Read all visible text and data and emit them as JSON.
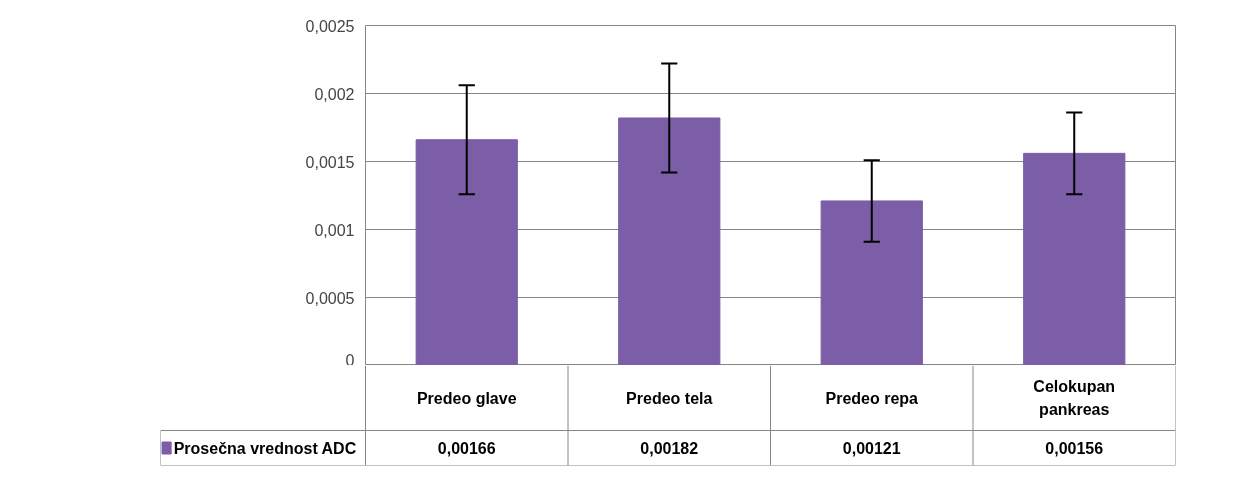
{
  "chart_data": {
    "type": "bar",
    "categories": [
      "Predeo glave",
      "Predeo tela",
      "Predeo repa",
      "Celokupan pankreas"
    ],
    "series": [
      {
        "name": "Prosečna vrednost ADC",
        "color": "#7b5ea7",
        "values": [
          0.00166,
          0.00182,
          0.00121,
          0.00156
        ],
        "errors": [
          0.0004,
          0.0004,
          0.0003,
          0.0003
        ],
        "value_labels": [
          "0,00166",
          "0,00182",
          "0,00121",
          "0,00156"
        ]
      }
    ],
    "ylim": [
      0,
      0.0025
    ],
    "yticks": [
      {
        "value": 0,
        "label": "0"
      },
      {
        "value": 0.0005,
        "label": "0,0005"
      },
      {
        "value": 0.001,
        "label": "0,001"
      },
      {
        "value": 0.0015,
        "label": "0,0015"
      },
      {
        "value": 0.002,
        "label": "0,002"
      },
      {
        "value": 0.0025,
        "label": "0,0025"
      }
    ],
    "grid": "y",
    "legend": "bottom"
  }
}
